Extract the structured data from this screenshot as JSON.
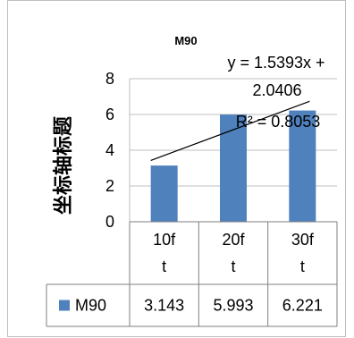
{
  "chart_data": {
    "type": "bar",
    "title": "M90",
    "ylabel": "坐标轴标题",
    "xlabel": "",
    "categories": [
      "10ft",
      "20ft",
      "30ft"
    ],
    "category_lines": [
      [
        "10f",
        "t"
      ],
      [
        "20f",
        "t"
      ],
      [
        "30f",
        "t"
      ]
    ],
    "series": [
      {
        "name": "M90",
        "values": [
          3.143,
          5.993,
          6.221
        ],
        "value_labels": [
          "3.143",
          "5.993",
          "6.221"
        ],
        "color": "#4f81bd"
      }
    ],
    "ylim": [
      0,
      8
    ],
    "yticks": [
      0,
      2,
      4,
      6,
      8
    ],
    "grid": true,
    "legend": "data-table",
    "data_table": true,
    "trendline": {
      "type": "linear",
      "slope": 1.5393,
      "intercept": 2.0406,
      "equation_lines": [
        "y = 1.5393x +",
        "2.0406"
      ],
      "r2_label": "R² = 0.8053",
      "color": "#000000"
    }
  }
}
